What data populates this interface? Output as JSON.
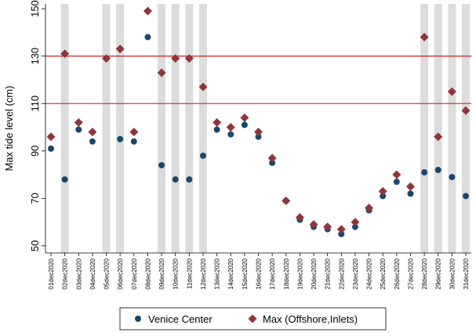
{
  "chart_data": {
    "type": "scatter",
    "y_label": "Max tide level (cm)",
    "categories": [
      "01dec2020",
      "02dec2020",
      "03dec2020",
      "04dec2020",
      "05dec2020",
      "06dec2020",
      "07dec2020",
      "08dec2020",
      "09dec2020",
      "10dec2020",
      "11dec2020",
      "12dec2020",
      "13dec2020",
      "14dec2020",
      "15dec2020",
      "16dec2020",
      "17dec2020",
      "18dec2020",
      "19dec2020",
      "20dec2020",
      "21dec2020",
      "22dec2020",
      "23dec2020",
      "24dec2020",
      "25dec2020",
      "26dec2020",
      "27dec2020",
      "28dec2020",
      "29dec2020",
      "30dec2020",
      "31dec2020"
    ],
    "series": [
      {
        "name": "Venice Center",
        "color": "#1a476f",
        "marker": "circle",
        "values": [
          91,
          78,
          99,
          94,
          129,
          95,
          94,
          138,
          84,
          78,
          78,
          88,
          99,
          97,
          101,
          96,
          85,
          69,
          61,
          58,
          57,
          55,
          58,
          65,
          71,
          77,
          72,
          81,
          82,
          79,
          71
        ]
      },
      {
        "name": "Max (Offshore,Inlets)",
        "color": "#90353b",
        "marker": "diamond",
        "values": [
          96,
          131,
          102,
          98,
          129,
          133,
          98,
          149,
          123,
          129,
          129,
          117,
          102,
          100,
          104,
          98,
          87,
          69,
          62,
          59,
          58,
          57,
          60,
          66,
          73,
          80,
          75,
          138,
          96,
          115,
          107
        ]
      }
    ],
    "shaded_categories": [
      "02dec2020",
      "05dec2020",
      "06dec2020",
      "09dec2020",
      "10dec2020",
      "11dec2020",
      "12dec2020",
      "28dec2020",
      "29dec2020",
      "30dec2020",
      "31dec2020"
    ],
    "shade_color": "#dcdcdc",
    "hlines": [
      110,
      130
    ],
    "hline_color": "#d62020",
    "ylim": [
      47,
      152
    ],
    "yticks": [
      50,
      70,
      90,
      110,
      130,
      150
    ]
  }
}
